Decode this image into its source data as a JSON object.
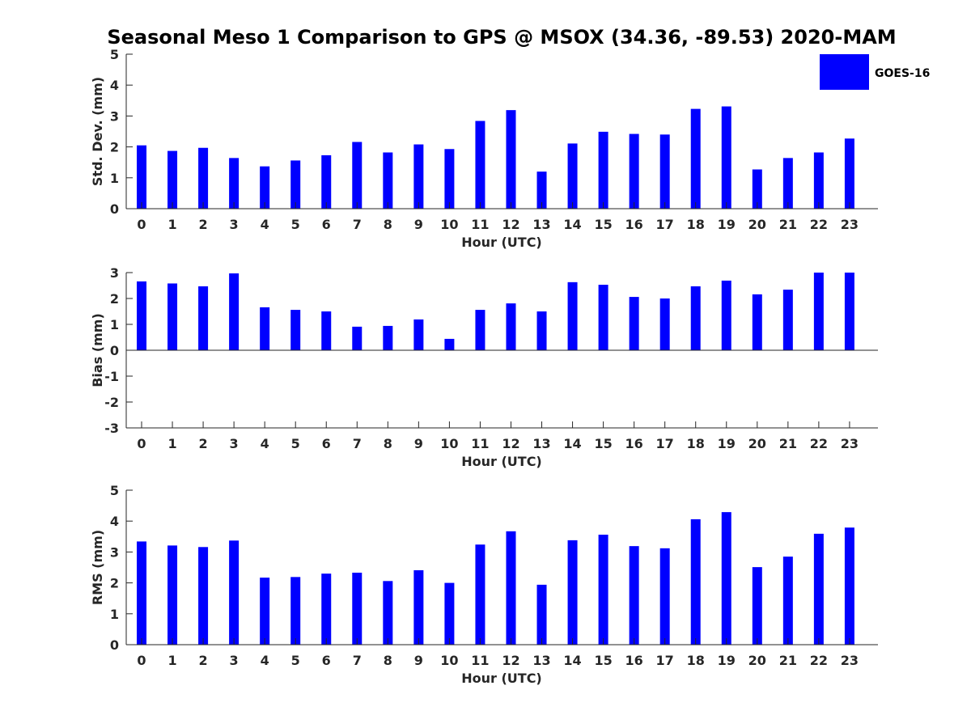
{
  "title": "Seasonal Meso 1 Comparison to GPS @ MSOX (34.36, -89.53) 2020-MAM",
  "legend": {
    "label": "GOES-16",
    "color": "#0000ff"
  },
  "chart_data": [
    {
      "type": "bar",
      "name": "std-dev",
      "xlabel": "Hour (UTC)",
      "ylabel": "Std. Dev. (mm)",
      "ylim": [
        0,
        5
      ],
      "yticks": [
        "0",
        "1",
        "2",
        "3",
        "4",
        "5"
      ],
      "categories": [
        "0",
        "1",
        "2",
        "3",
        "4",
        "5",
        "6",
        "7",
        "8",
        "9",
        "10",
        "11",
        "12",
        "13",
        "14",
        "15",
        "16",
        "17",
        "18",
        "19",
        "20",
        "21",
        "22",
        "23"
      ],
      "series": [
        {
          "name": "GOES-16",
          "color": "#0000ff",
          "values": [
            2.05,
            1.87,
            1.97,
            1.64,
            1.37,
            1.56,
            1.73,
            2.16,
            1.82,
            2.08,
            1.93,
            2.84,
            3.19,
            1.2,
            2.11,
            2.49,
            2.42,
            2.4,
            3.23,
            3.31,
            1.27,
            1.64,
            1.82,
            2.27
          ]
        }
      ]
    },
    {
      "type": "bar",
      "name": "bias",
      "xlabel": "Hour (UTC)",
      "ylabel": "Bias (mm)",
      "ylim": [
        -3,
        3
      ],
      "yticks": [
        "-3",
        "-2",
        "-1",
        "0",
        "1",
        "2",
        "3"
      ],
      "categories": [
        "0",
        "1",
        "2",
        "3",
        "4",
        "5",
        "6",
        "7",
        "8",
        "9",
        "10",
        "11",
        "12",
        "13",
        "14",
        "15",
        "16",
        "17",
        "18",
        "19",
        "20",
        "21",
        "22",
        "23"
      ],
      "series": [
        {
          "name": "GOES-16",
          "color": "#0000ff",
          "values": [
            2.66,
            2.58,
            2.47,
            2.97,
            1.66,
            1.56,
            1.5,
            0.91,
            0.94,
            1.19,
            0.44,
            1.56,
            1.81,
            1.5,
            2.63,
            2.53,
            2.06,
            2.0,
            2.47,
            2.69,
            2.16,
            2.34,
            3.0,
            3.0
          ]
        }
      ]
    },
    {
      "type": "bar",
      "name": "rms",
      "xlabel": "Hour (UTC)",
      "ylabel": "RMS (mm)",
      "ylim": [
        0,
        5
      ],
      "yticks": [
        "0",
        "1",
        "2",
        "3",
        "4",
        "5"
      ],
      "categories": [
        "0",
        "1",
        "2",
        "3",
        "4",
        "5",
        "6",
        "7",
        "8",
        "9",
        "10",
        "11",
        "12",
        "13",
        "14",
        "15",
        "16",
        "17",
        "18",
        "19",
        "20",
        "21",
        "22",
        "23"
      ],
      "series": [
        {
          "name": "GOES-16",
          "color": "#0000ff",
          "values": [
            3.34,
            3.21,
            3.16,
            3.37,
            2.17,
            2.19,
            2.3,
            2.33,
            2.06,
            2.41,
            2.0,
            3.24,
            3.67,
            1.94,
            3.38,
            3.56,
            3.19,
            3.12,
            4.06,
            4.29,
            2.51,
            2.85,
            3.59,
            3.79
          ]
        }
      ]
    }
  ]
}
